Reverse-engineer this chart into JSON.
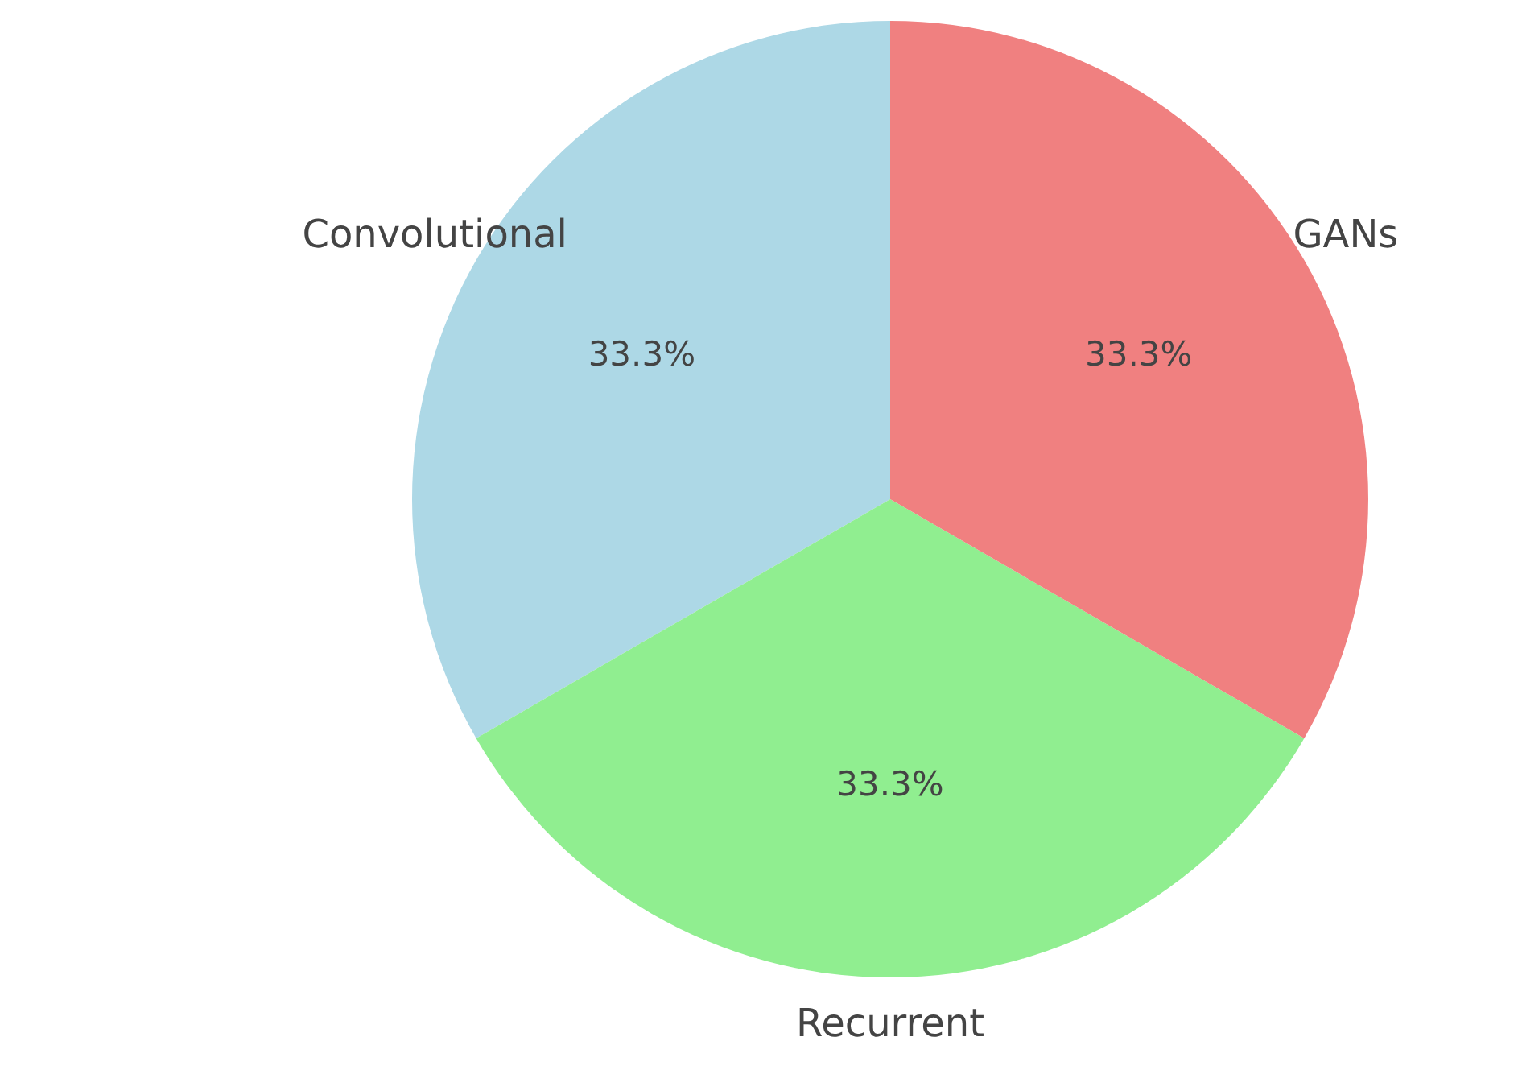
{
  "chart_data": {
    "type": "pie",
    "categories": [
      "Convolutional",
      "Recurrent",
      "GANs"
    ],
    "values": [
      33.3,
      33.3,
      33.3
    ],
    "value_labels": [
      "33.3%",
      "33.3%",
      "33.3%"
    ],
    "colors": [
      "#add8e6",
      "#90ee90",
      "#f08080"
    ]
  }
}
